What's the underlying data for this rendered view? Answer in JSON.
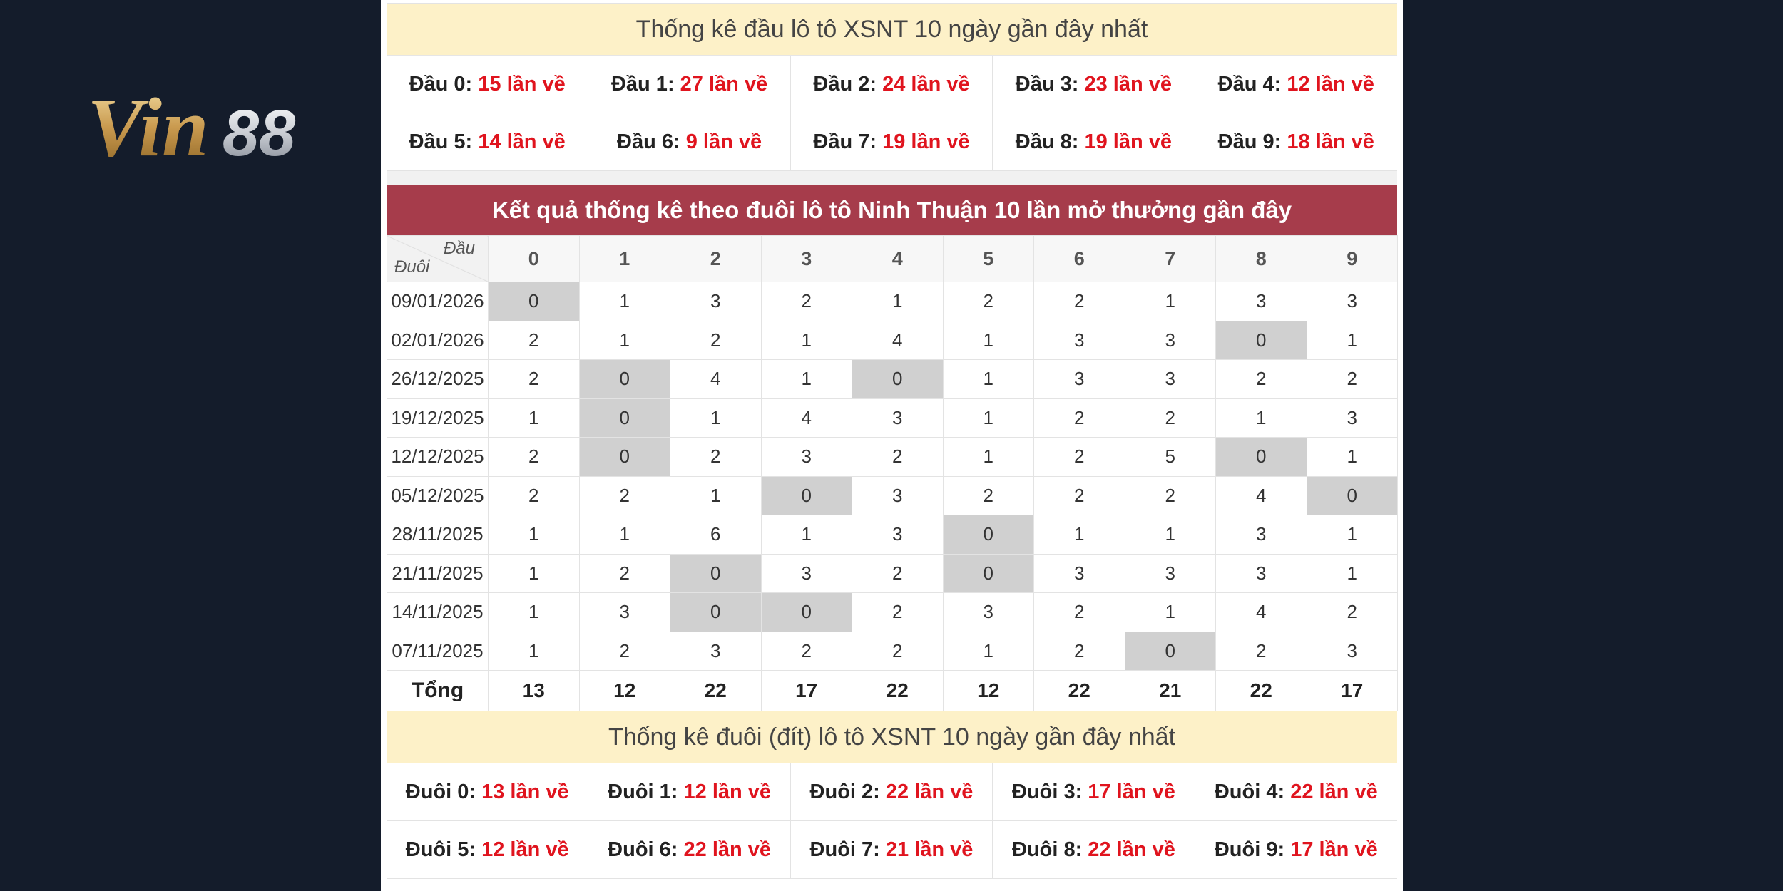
{
  "logo": {
    "text": "Vin88",
    "part1": "Vin",
    "part2": "88"
  },
  "head_stats": {
    "title": "Thống kê đầu lô tô XSNT 10 ngày gần đây nhất",
    "items": [
      {
        "label": "Đầu 0:",
        "value": "15 lần về"
      },
      {
        "label": "Đầu 1:",
        "value": "27 lần về"
      },
      {
        "label": "Đầu 2:",
        "value": "24 lần về"
      },
      {
        "label": "Đầu 3:",
        "value": "23 lần về"
      },
      {
        "label": "Đầu 4:",
        "value": "12 lần về"
      },
      {
        "label": "Đầu 5:",
        "value": "14 lần về"
      },
      {
        "label": "Đầu 6:",
        "value": "9 lần về"
      },
      {
        "label": "Đầu 7:",
        "value": "19 lần về"
      },
      {
        "label": "Đầu 8:",
        "value": "19 lần về"
      },
      {
        "label": "Đầu 9:",
        "value": "18 lần về"
      }
    ]
  },
  "tail_table": {
    "title": "Kết quả thống kê theo đuôi lô tô Ninh Thuận 10 lần mở thưởng gần đây",
    "corner_top": "Đầu",
    "corner_bottom": "Đuôi",
    "columns": [
      "0",
      "1",
      "2",
      "3",
      "4",
      "5",
      "6",
      "7",
      "8",
      "9"
    ],
    "rows": [
      {
        "date": "09/01/2026",
        "values": [
          "0",
          "1",
          "3",
          "2",
          "1",
          "2",
          "2",
          "1",
          "3",
          "3"
        ]
      },
      {
        "date": "02/01/2026",
        "values": [
          "2",
          "1",
          "2",
          "1",
          "4",
          "1",
          "3",
          "3",
          "0",
          "1"
        ]
      },
      {
        "date": "26/12/2025",
        "values": [
          "2",
          "0",
          "4",
          "1",
          "0",
          "1",
          "3",
          "3",
          "2",
          "2"
        ]
      },
      {
        "date": "19/12/2025",
        "values": [
          "1",
          "0",
          "1",
          "4",
          "3",
          "1",
          "2",
          "2",
          "1",
          "3"
        ]
      },
      {
        "date": "12/12/2025",
        "values": [
          "2",
          "0",
          "2",
          "3",
          "2",
          "1",
          "2",
          "5",
          "0",
          "1"
        ]
      },
      {
        "date": "05/12/2025",
        "values": [
          "2",
          "2",
          "1",
          "0",
          "3",
          "2",
          "2",
          "2",
          "4",
          "0"
        ]
      },
      {
        "date": "28/11/2025",
        "values": [
          "1",
          "1",
          "6",
          "1",
          "3",
          "0",
          "1",
          "1",
          "3",
          "1"
        ]
      },
      {
        "date": "21/11/2025",
        "values": [
          "1",
          "2",
          "0",
          "3",
          "2",
          "0",
          "3",
          "3",
          "3",
          "1"
        ]
      },
      {
        "date": "14/11/2025",
        "values": [
          "1",
          "3",
          "0",
          "0",
          "2",
          "3",
          "2",
          "1",
          "4",
          "2"
        ]
      },
      {
        "date": "07/11/2025",
        "values": [
          "1",
          "2",
          "3",
          "2",
          "2",
          "1",
          "2",
          "0",
          "2",
          "3"
        ]
      }
    ],
    "total_label": "Tổng",
    "totals": [
      "13",
      "12",
      "22",
      "17",
      "22",
      "12",
      "22",
      "21",
      "22",
      "17"
    ]
  },
  "tail_stats": {
    "title": "Thống kê đuôi (đít) lô tô XSNT 10 ngày gần đây nhất",
    "items": [
      {
        "label": "Đuôi 0:",
        "value": "13 lần về"
      },
      {
        "label": "Đuôi 1:",
        "value": "12 lần về"
      },
      {
        "label": "Đuôi 2:",
        "value": "22 lần về"
      },
      {
        "label": "Đuôi 3:",
        "value": "17 lần về"
      },
      {
        "label": "Đuôi 4:",
        "value": "22 lần về"
      },
      {
        "label": "Đuôi 5:",
        "value": "12 lần về"
      },
      {
        "label": "Đuôi 6:",
        "value": "22 lần về"
      },
      {
        "label": "Đuôi 7:",
        "value": "21 lần về"
      },
      {
        "label": "Đuôi 8:",
        "value": "22 lần về"
      },
      {
        "label": "Đuôi 9:",
        "value": "17 lần về"
      }
    ]
  },
  "colors": {
    "background": "#141c2b",
    "header_bar": "#a63c4b",
    "stat_title_bg": "#fdf1c8",
    "highlight_value": "#e0141e",
    "zero_cell": "#d0d0d0"
  }
}
